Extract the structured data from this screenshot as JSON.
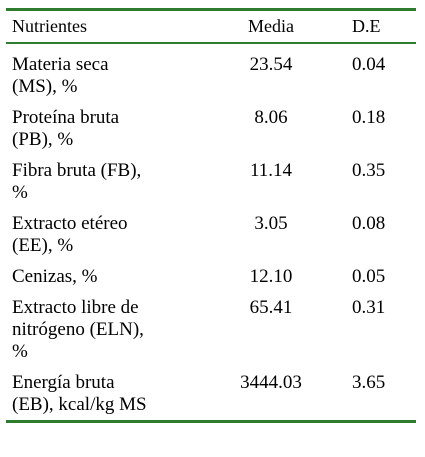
{
  "table": {
    "headers": [
      "Nutrientes",
      "Media",
      "D.E"
    ],
    "rows": [
      {
        "name": [
          "Materia seca",
          "(MS), %"
        ],
        "mean": "23.54",
        "sd": "0.04"
      },
      {
        "name": [
          "Proteína bruta",
          "(PB), %"
        ],
        "mean": "8.06",
        "sd": "0.18"
      },
      {
        "name": [
          "Fibra bruta (FB),",
          "%"
        ],
        "mean": "11.14",
        "sd": "0.35"
      },
      {
        "name": [
          "Extracto etéreo",
          "(EE), %"
        ],
        "mean": "3.05",
        "sd": "0.08"
      },
      {
        "name": [
          "Cenizas, %"
        ],
        "mean": "12.10",
        "sd": "0.05"
      },
      {
        "name": [
          "Extracto libre de",
          "nitrógeno (ELN),",
          "%"
        ],
        "mean": "65.41",
        "sd": "0.31"
      },
      {
        "name": [
          "Energía bruta",
          "(EB), kcal/kg MS"
        ],
        "mean": "3444.03",
        "sd": "3.65"
      }
    ]
  },
  "colors": {
    "rule": "#2e7d2e",
    "text": "#000000",
    "background": "#ffffff"
  }
}
